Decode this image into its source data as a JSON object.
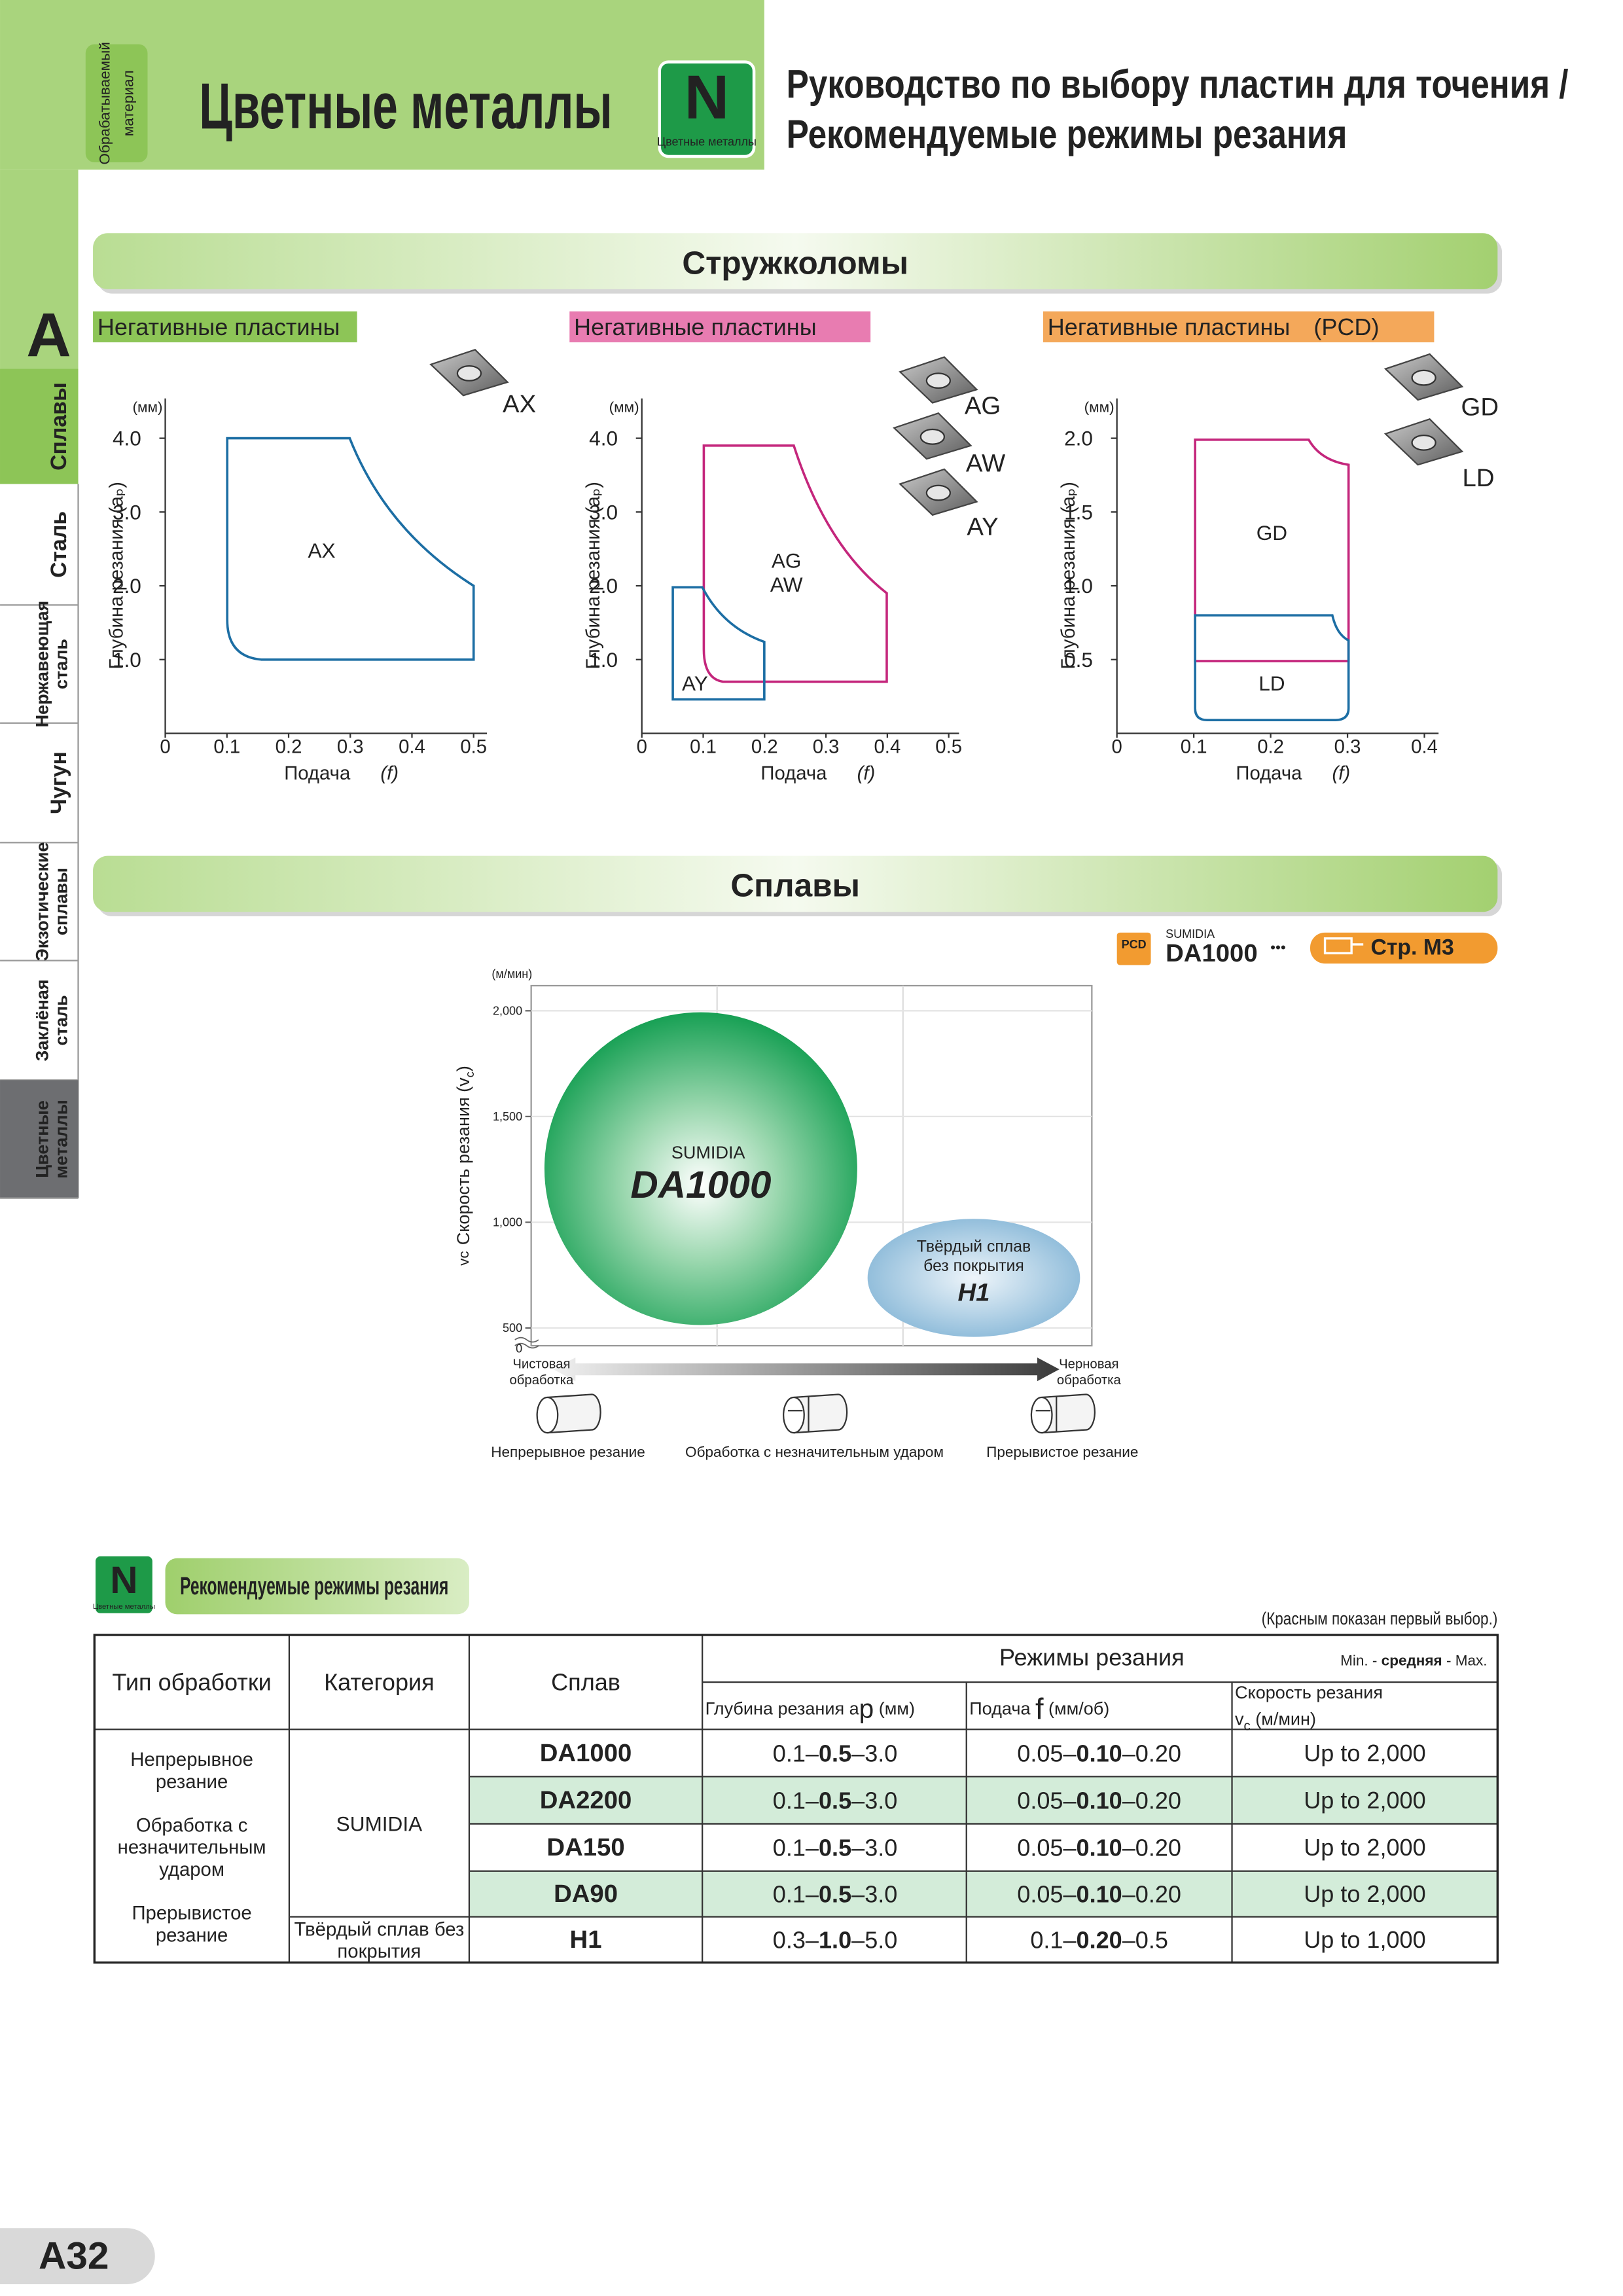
{
  "header": {
    "material_label": [
      "Обрабатываемый",
      "материал"
    ],
    "title": "Цветные металлы",
    "badge": {
      "letter": "N",
      "caption": "Цветные металлы"
    },
    "subtitle": [
      "Руководство по выбору пластин для точения /",
      "Рекомендуемые режимы резания"
    ]
  },
  "sidebar": {
    "section": "A",
    "tabs": [
      [
        "Сплавы"
      ],
      [
        "Сталь"
      ],
      [
        "Нержавеющая",
        "сталь"
      ],
      [
        "Чугун"
      ],
      [
        "Экзотические",
        "сплавы"
      ],
      [
        "Заклёная",
        "сталь"
      ],
      [
        "Цветные",
        "металлы"
      ]
    ]
  },
  "chipbreakers": {
    "title": "Стружколомы",
    "y_unit": "(мм)",
    "y_label": "Глубина резания (aₚ)",
    "x_label": "Подача",
    "x_symbol": "(f)",
    "panels": [
      {
        "label": "Негативные пластины",
        "color": "#8dc557",
        "yticks": [
          "1.0",
          "2.0",
          "3.0",
          "4.0"
        ],
        "xticks": [
          "0",
          "0.1",
          "0.2",
          "0.3",
          "0.4",
          "0.5"
        ],
        "inserts": [
          {
            "name": "AX",
            "color": "#1c6ea4"
          }
        ],
        "regions": [
          {
            "names": [
              "AX"
            ],
            "color": "#1c6ea4"
          }
        ]
      },
      {
        "label": "Негативные пластины",
        "color": "#e87cb1",
        "yticks": [
          "1.0",
          "2.0",
          "3.0",
          "4.0"
        ],
        "xticks": [
          "0",
          "0.1",
          "0.2",
          "0.3",
          "0.4",
          "0.5"
        ],
        "inserts": [
          {
            "name": "AG",
            "color": "#c4267c"
          },
          {
            "name": "AW",
            "color": "#c4267c"
          },
          {
            "name": "AY",
            "color": "#1c6ea4"
          }
        ],
        "regions": [
          {
            "names": [
              "AG",
              "AW"
            ],
            "color": "#c4267c"
          },
          {
            "names": [
              "AY"
            ],
            "color": "#1c6ea4"
          }
        ]
      },
      {
        "label": "Негативные пластины　(PCD)",
        "color": "#f4a85a",
        "yticks": [
          "0.5",
          "1.0",
          "1.5",
          "2.0"
        ],
        "xticks": [
          "0",
          "0.1",
          "0.2",
          "0.3",
          "0.4"
        ],
        "inserts": [
          {
            "name": "GD",
            "color": "#c4267c"
          },
          {
            "name": "LD",
            "color": "#1c6ea4"
          }
        ],
        "regions": [
          {
            "names": [
              "GD"
            ],
            "color": "#c4267c"
          },
          {
            "names": [
              "LD"
            ],
            "color": "#1c6ea4"
          }
        ]
      }
    ]
  },
  "alloys": {
    "title": "Сплавы",
    "link": {
      "badge": "PCD",
      "brand": "SUMIDIA",
      "grade": "DA1000",
      "dots": "•••",
      "ref": "Стр. M3"
    },
    "chart": {
      "y_unit": "(м/мин)",
      "y_symbol": "vc",
      "y_label": [
        "Скорость резания (v",
        "c",
        ")"
      ],
      "yticks": [
        "0",
        "500",
        "1,000",
        "1,500",
        "2,000"
      ],
      "bubbles": [
        {
          "lines": [
            "SUMIDIA",
            "DA1000"
          ]
        },
        {
          "lines": [
            "Твёрдый сплав",
            "без покрытия",
            "H1"
          ]
        }
      ],
      "x_left": [
        "Чистовая",
        "обработка"
      ],
      "x_right": [
        "Черновая",
        "обработка"
      ],
      "modes": [
        "Непрерывное резание",
        "Обработка с незначительным ударом",
        "Прерывистое резание"
      ]
    }
  },
  "conditions": {
    "badge": {
      "letter": "N",
      "caption": "Цветные металлы"
    },
    "title": "Рекомендуемые режимы резания",
    "note": "(Красным показан первый выбор.)",
    "separator": "–",
    "headers": {
      "type": "Тип обработки",
      "category": "Категория",
      "grade": "Сплав",
      "conditions": "Режимы резания",
      "legend": [
        "Min. - ",
        "средняя",
        " - Max."
      ],
      "depth": [
        "Глубина резания a",
        "p",
        " (мм)"
      ],
      "feed": [
        "Подача ",
        "f",
        " (мм/об)"
      ],
      "speed": {
        "line1": "Скорость резания",
        "line2": [
          "v",
          "c",
          " (м/мин)"
        ]
      }
    },
    "types": [
      [
        "Непрерывное",
        "резание"
      ],
      [
        "Обработка с",
        "незначительным",
        "ударом"
      ],
      [
        "Прерывистое",
        "резание"
      ]
    ],
    "categories": [
      [
        "SUMIDIA"
      ],
      [
        "Твёрдый сплав без",
        "покрытия"
      ]
    ],
    "rows": [
      {
        "grade": "DA1000",
        "grade_color": "#d7202a",
        "depth": [
          "0.1",
          "0.5",
          "3.0"
        ],
        "feed": [
          "0.05",
          "0.10",
          "0.20"
        ],
        "speed": "Up to 2,000"
      },
      {
        "grade": "DA2200",
        "depth": [
          "0.1",
          "0.5",
          "3.0"
        ],
        "feed": [
          "0.05",
          "0.10",
          "0.20"
        ],
        "speed": "Up to 2,000"
      },
      {
        "grade": "DA150",
        "depth": [
          "0.1",
          "0.5",
          "3.0"
        ],
        "feed": [
          "0.05",
          "0.10",
          "0.20"
        ],
        "speed": "Up to 2,000"
      },
      {
        "grade": "DA90",
        "depth": [
          "0.1",
          "0.5",
          "3.0"
        ],
        "feed": [
          "0.05",
          "0.10",
          "0.20"
        ],
        "speed": "Up to 2,000"
      },
      {
        "grade": "H1",
        "depth": [
          "0.3",
          "1.0",
          "5.0"
        ],
        "feed": [
          "0.1",
          "0.20",
          "0.5"
        ],
        "speed": "Up to 1,000"
      }
    ]
  },
  "page": "A32"
}
